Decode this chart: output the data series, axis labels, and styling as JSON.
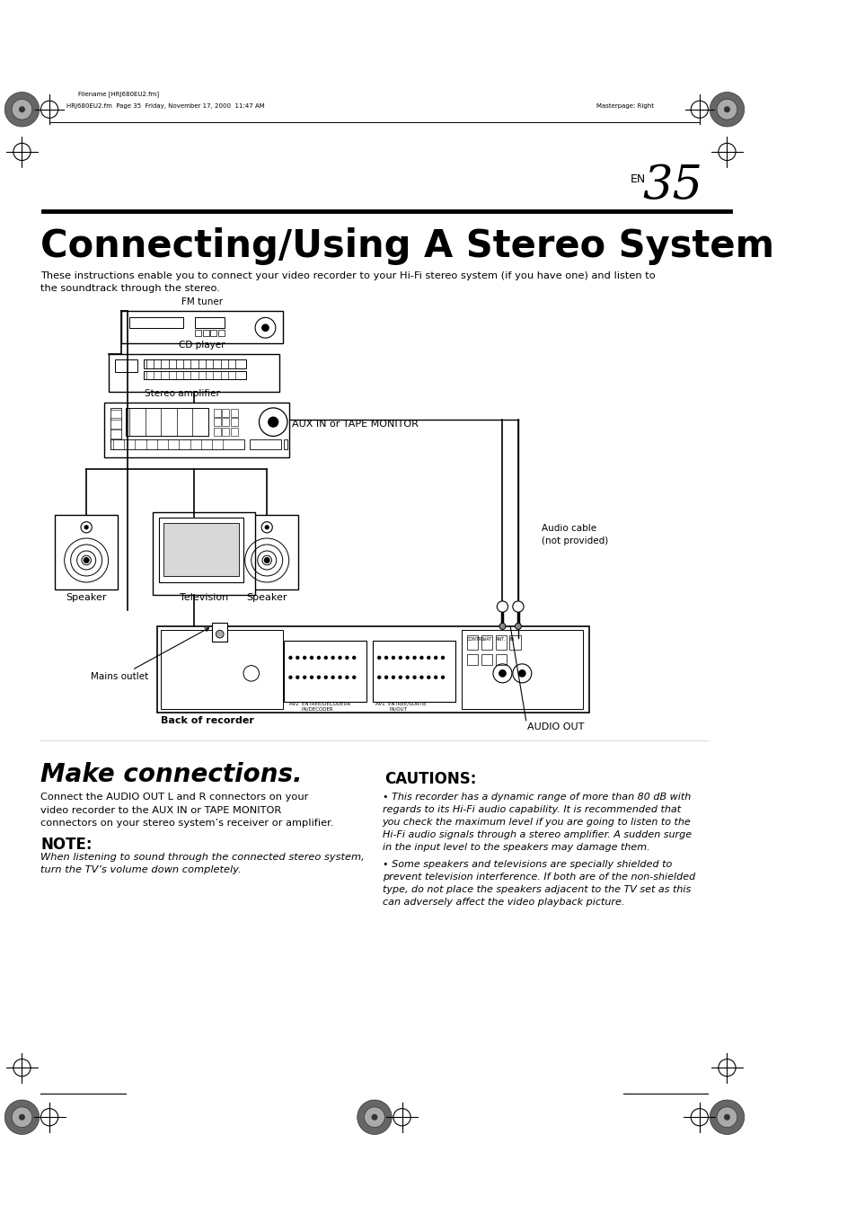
{
  "bg_color": "#ffffff",
  "page_width": 9.54,
  "page_height": 13.51,
  "header_filename": "Filename [HRJ680EU2.fm]",
  "header_pageinfo": "HRJ680EU2.fm  Page 35  Friday, November 17, 2000  11:47 AM",
  "header_masterpage": "Masterpage: Right",
  "page_num": "35",
  "page_num_prefix": "EN",
  "main_title": "Connecting/Using A Stereo System",
  "intro_text": "These instructions enable you to connect your video recorder to your Hi-Fi stereo system (if you have one) and listen to\nthe soundtrack through the stereo.",
  "diagram_labels": {
    "fm_tuner": "FM tuner",
    "cd_player": "CD player",
    "stereo_amp": "Stereo amplifier",
    "aux_in": "AUX IN or TAPE MONITOR",
    "audio_cable": "Audio cable\n(not provided)",
    "speaker_left": "Speaker",
    "television": "Television",
    "speaker_right": "Speaker",
    "mains_outlet": "Mains outlet",
    "back_of_recorder": "Back of recorder",
    "audio_out": "AUDIO OUT"
  },
  "make_connections_title": "Make connections.",
  "make_connections_body": "Connect the AUDIO OUT L and R connectors on your\nvideo recorder to the AUX IN or TAPE MONITOR\nconnectors on your stereo system’s receiver or amplifier.",
  "note_title": "NOTE:",
  "note_body": "When listening to sound through the connected stereo system,\nturn the TV’s volume down completely.",
  "cautions_title": "CAUTIONS:",
  "caution1": "This recorder has a dynamic range of more than 80 dB with\nregards to its Hi-Fi audio capability. It is recommended that\nyou check the maximum level if you are going to listen to the\nHi-Fi audio signals through a stereo amplifier. A sudden surge\nin the input level to the speakers may damage them.",
  "caution2": "Some speakers and televisions are specially shielded to\nprevent television interference. If both are of the non-shielded\ntype, do not place the speakers adjacent to the TV set as this\ncan adversely affect the video playback picture."
}
